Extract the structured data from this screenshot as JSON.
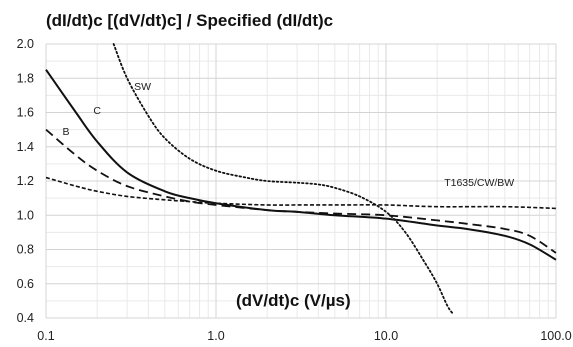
{
  "chart_data": {
    "type": "line",
    "xlabel": "(dV/dt)c (V/µs)",
    "ylabel": "(dI/dt)c [(dV/dt)c] / Specified (dI/dt)c",
    "xscale": "log",
    "xlim": [
      0.1,
      100
    ],
    "ylim": [
      0.4,
      2.0
    ],
    "x_ticks": [
      "0.1",
      "1.0",
      "10.0",
      "100.0"
    ],
    "y_ticks": [
      "0.4",
      "0.6",
      "0.8",
      "1.0",
      "1.2",
      "1.4",
      "1.6",
      "1.8",
      "2.0"
    ],
    "grid": true,
    "series": [
      {
        "name": "SW",
        "dash": "dotted",
        "x": [
          0.25,
          0.3,
          0.4,
          0.5,
          0.7,
          1.0,
          1.5,
          2.0,
          3.0,
          4.0,
          5.0,
          7.0,
          10.0,
          13.0,
          17.0,
          20.0,
          23.0,
          25.0
        ],
        "y": [
          2.0,
          1.8,
          1.58,
          1.45,
          1.33,
          1.26,
          1.22,
          1.2,
          1.19,
          1.18,
          1.16,
          1.11,
          1.02,
          0.9,
          0.72,
          0.6,
          0.47,
          0.42
        ]
      },
      {
        "name": "C",
        "dash": "solid",
        "x": [
          0.1,
          0.15,
          0.2,
          0.3,
          0.5,
          0.7,
          1.0,
          2.0,
          3.0,
          5.0,
          10.0,
          20.0,
          30.0,
          50.0,
          70.0,
          100.0
        ],
        "y": [
          1.85,
          1.6,
          1.43,
          1.25,
          1.14,
          1.1,
          1.07,
          1.03,
          1.02,
          1.0,
          0.98,
          0.94,
          0.92,
          0.88,
          0.83,
          0.74
        ]
      },
      {
        "name": "B",
        "dash": "dashed",
        "x": [
          0.1,
          0.15,
          0.2,
          0.3,
          0.5,
          0.7,
          1.0,
          2.0,
          3.0,
          5.0,
          10.0,
          20.0,
          30.0,
          50.0,
          70.0,
          100.0
        ],
        "y": [
          1.5,
          1.35,
          1.26,
          1.17,
          1.11,
          1.08,
          1.06,
          1.03,
          1.02,
          1.01,
          1.0,
          0.97,
          0.95,
          0.92,
          0.88,
          0.78
        ]
      },
      {
        "name": "T1635/CW/BW",
        "dash": "short-dashed",
        "x": [
          0.1,
          0.15,
          0.2,
          0.3,
          0.5,
          0.7,
          1.0,
          2.0,
          3.0,
          5.0,
          10.0,
          20.0,
          50.0,
          100.0
        ],
        "y": [
          1.22,
          1.17,
          1.14,
          1.11,
          1.09,
          1.08,
          1.07,
          1.06,
          1.06,
          1.06,
          1.06,
          1.05,
          1.05,
          1.04
        ]
      }
    ]
  }
}
